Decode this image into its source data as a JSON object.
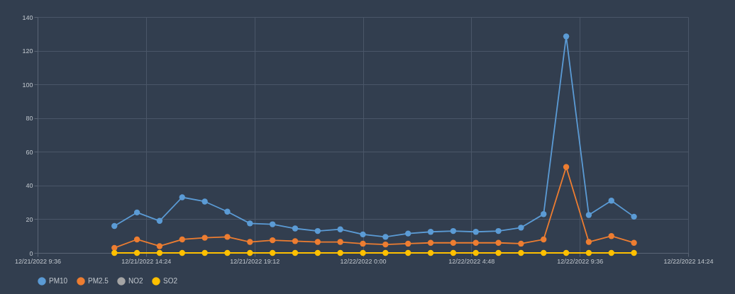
{
  "chart_data": {
    "type": "line",
    "x": [
      "2022-12-21T13:00",
      "2022-12-21T14:00",
      "2022-12-21T15:00",
      "2022-12-21T16:00",
      "2022-12-21T17:00",
      "2022-12-21T18:00",
      "2022-12-21T19:00",
      "2022-12-21T20:00",
      "2022-12-21T21:00",
      "2022-12-21T22:00",
      "2022-12-21T23:00",
      "2022-12-22T00:00",
      "2022-12-22T01:00",
      "2022-12-22T02:00",
      "2022-12-22T03:00",
      "2022-12-22T04:00",
      "2022-12-22T05:00",
      "2022-12-22T06:00",
      "2022-12-22T07:00",
      "2022-12-22T08:00",
      "2022-12-22T09:00",
      "2022-12-22T10:00",
      "2022-12-22T11:00",
      "2022-12-22T12:00"
    ],
    "series": [
      {
        "name": "PM10",
        "color": "#5b9bd5",
        "values": [
          16,
          24,
          19,
          33,
          30.5,
          24.5,
          17.5,
          17,
          14.5,
          13,
          14,
          11,
          9.5,
          11.5,
          12.5,
          13,
          12.5,
          13,
          15,
          23,
          128.5,
          22.5,
          31,
          21.5
        ]
      },
      {
        "name": "PM2.5",
        "color": "#ed7d31",
        "values": [
          3,
          8,
          4,
          8,
          9,
          9.5,
          6.5,
          7.5,
          7,
          6.5,
          6.5,
          5.5,
          5,
          5.5,
          6,
          6,
          6,
          6,
          5.5,
          8,
          51,
          6.5,
          10,
          6
        ]
      },
      {
        "name": "NO2",
        "color": "#a5a5a5",
        "values": [
          null,
          null,
          null,
          null,
          null,
          null,
          null,
          null,
          null,
          null,
          null,
          null,
          null,
          null,
          null,
          null,
          null,
          null,
          null,
          null,
          null,
          null,
          null,
          null
        ]
      },
      {
        "name": "SO2",
        "color": "#ffc000",
        "values": [
          0,
          0,
          0,
          0,
          0,
          0,
          0,
          0,
          0,
          0,
          0,
          0,
          0,
          0,
          0,
          0,
          0,
          0,
          0,
          0,
          0,
          0,
          0,
          0
        ]
      }
    ],
    "xlim": [
      "2022-12-21T09:36",
      "2022-12-22T14:24"
    ],
    "xticks": [
      {
        "value": "2022-12-21T09:36",
        "label": "12/21/2022 9:36"
      },
      {
        "value": "2022-12-21T14:24",
        "label": "12/21/2022 14:24"
      },
      {
        "value": "2022-12-21T19:12",
        "label": "12/21/2022 19:12"
      },
      {
        "value": "2022-12-22T00:00",
        "label": "12/22/2022 0:00"
      },
      {
        "value": "2022-12-22T04:48",
        "label": "12/22/2022 4:48"
      },
      {
        "value": "2022-12-22T09:36",
        "label": "12/22/2022 9:36"
      },
      {
        "value": "2022-12-22T14:24",
        "label": "12/22/2022 14:24"
      }
    ],
    "ylim": [
      0,
      140
    ],
    "yticks": [
      0,
      20,
      40,
      60,
      80,
      100,
      120,
      140
    ],
    "grid": true,
    "legend": "bottom",
    "marker": "circle",
    "line_style": "solid"
  }
}
